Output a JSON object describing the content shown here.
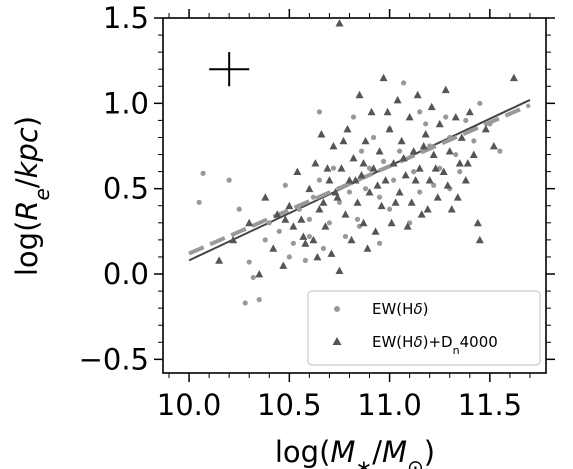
{
  "chart_data": {
    "type": "scatter",
    "xlabel": "log(M_*/M_⊙)",
    "ylabel": "log(R_e/kpc)",
    "xlim": [
      9.87,
      11.78
    ],
    "ylim": [
      -0.58,
      1.5
    ],
    "xticks": [
      "10.0",
      "10.5",
      "11.0",
      "11.5"
    ],
    "yticks": [
      "−0.5",
      "0.0",
      "0.5",
      "1.0",
      "1.5"
    ],
    "xtick_values": [
      10.0,
      10.5,
      11.0,
      11.5
    ],
    "ytick_values": [
      -0.5,
      0.0,
      0.5,
      1.0,
      1.5
    ],
    "grid": false,
    "legend_position": "bottom-right",
    "error_cross": {
      "x": 10.2,
      "y": 1.2,
      "xerr": 0.1,
      "yerr": 0.1
    },
    "series": [
      {
        "name": "EW(Hδ)",
        "marker": "circle",
        "color": "#999999",
        "points": [
          [
            10.05,
            0.42
          ],
          [
            10.07,
            0.59
          ],
          [
            10.2,
            0.55
          ],
          [
            10.25,
            0.38
          ],
          [
            10.3,
            0.07
          ],
          [
            10.32,
            -0.02
          ],
          [
            10.35,
            -0.15
          ],
          [
            10.28,
            -0.17
          ],
          [
            10.38,
            0.2
          ],
          [
            10.4,
            0.3
          ],
          [
            10.45,
            0.25
          ],
          [
            10.48,
            0.52
          ],
          [
            10.5,
            0.1
          ],
          [
            10.52,
            0.18
          ],
          [
            10.55,
            0.38
          ],
          [
            10.58,
            0.08
          ],
          [
            10.6,
            0.22
          ],
          [
            10.62,
            0.45
          ],
          [
            10.65,
            0.55
          ],
          [
            10.67,
            0.15
          ],
          [
            10.7,
            0.3
          ],
          [
            10.72,
            0.62
          ],
          [
            10.75,
            0.42
          ],
          [
            10.78,
            0.22
          ],
          [
            10.8,
            0.48
          ],
          [
            10.82,
            0.92
          ],
          [
            10.84,
            0.32
          ],
          [
            10.86,
            0.72
          ],
          [
            10.88,
            0.5
          ],
          [
            10.9,
            0.62
          ],
          [
            10.92,
            0.8
          ],
          [
            10.95,
            0.45
          ],
          [
            10.97,
            0.66
          ],
          [
            11.0,
            0.38
          ],
          [
            11.02,
            0.55
          ],
          [
            11.05,
            0.72
          ],
          [
            11.07,
            1.12
          ],
          [
            11.1,
            0.3
          ],
          [
            11.12,
            0.6
          ],
          [
            11.15,
            0.48
          ],
          [
            11.18,
            0.88
          ],
          [
            11.2,
            0.75
          ],
          [
            11.22,
            0.52
          ],
          [
            11.25,
            0.62
          ],
          [
            11.28,
            0.92
          ],
          [
            11.3,
            0.8
          ],
          [
            11.33,
            0.7
          ],
          [
            11.35,
            0.6
          ],
          [
            11.38,
            0.9
          ],
          [
            11.42,
            0.78
          ],
          [
            11.45,
            1.0
          ],
          [
            11.5,
            0.88
          ],
          [
            11.55,
            0.72
          ],
          [
            10.65,
            0.95
          ],
          [
            10.85,
            0.28
          ],
          [
            11.0,
            0.85
          ],
          [
            11.15,
            0.95
          ],
          [
            10.95,
            0.18
          ],
          [
            10.6,
            0.32
          ],
          [
            11.3,
            0.5
          ]
        ]
      },
      {
        "name": "EW(Hδ)+D_n4000",
        "marker": "triangle",
        "color": "#555555",
        "points": [
          [
            10.75,
            1.47
          ],
          [
            11.62,
            1.15
          ],
          [
            10.15,
            0.08
          ],
          [
            10.22,
            0.2
          ],
          [
            10.3,
            0.3
          ],
          [
            10.35,
            0.0
          ],
          [
            10.38,
            0.45
          ],
          [
            10.42,
            0.15
          ],
          [
            10.44,
            0.35
          ],
          [
            10.47,
            0.05
          ],
          [
            10.5,
            0.4
          ],
          [
            10.52,
            0.28
          ],
          [
            10.54,
            0.6
          ],
          [
            10.56,
            0.32
          ],
          [
            10.58,
            0.18
          ],
          [
            10.6,
            0.5
          ],
          [
            10.62,
            0.2
          ],
          [
            10.63,
            0.65
          ],
          [
            10.65,
            0.38
          ],
          [
            10.66,
            0.82
          ],
          [
            10.68,
            0.28
          ],
          [
            10.7,
            0.55
          ],
          [
            10.71,
            0.12
          ],
          [
            10.72,
            0.75
          ],
          [
            10.74,
            0.45
          ],
          [
            10.75,
            0.02
          ],
          [
            10.76,
            0.62
          ],
          [
            10.78,
            0.35
          ],
          [
            10.79,
            0.85
          ],
          [
            10.8,
            0.55
          ],
          [
            10.81,
            0.2
          ],
          [
            10.82,
            0.68
          ],
          [
            10.84,
            0.42
          ],
          [
            10.85,
            1.05
          ],
          [
            10.86,
            0.58
          ],
          [
            10.87,
            0.3
          ],
          [
            10.88,
            0.78
          ],
          [
            10.9,
            0.48
          ],
          [
            10.91,
            0.95
          ],
          [
            10.92,
            0.62
          ],
          [
            10.93,
            0.25
          ],
          [
            10.95,
            0.72
          ],
          [
            10.96,
            0.4
          ],
          [
            10.97,
            1.15
          ],
          [
            10.98,
            0.55
          ],
          [
            11.0,
            0.85
          ],
          [
            11.01,
            0.3
          ],
          [
            11.02,
            0.65
          ],
          [
            11.04,
            1.02
          ],
          [
            11.05,
            0.48
          ],
          [
            11.06,
            0.78
          ],
          [
            11.08,
            0.58
          ],
          [
            11.1,
            0.92
          ],
          [
            11.11,
            0.42
          ],
          [
            11.12,
            0.72
          ],
          [
            11.14,
            1.05
          ],
          [
            11.15,
            0.62
          ],
          [
            11.16,
            0.35
          ],
          [
            11.18,
            0.82
          ],
          [
            11.2,
            0.55
          ],
          [
            11.21,
            0.98
          ],
          [
            11.22,
            0.7
          ],
          [
            11.24,
            0.45
          ],
          [
            11.25,
            0.88
          ],
          [
            11.27,
            0.6
          ],
          [
            11.28,
            1.08
          ],
          [
            11.3,
            0.72
          ],
          [
            11.31,
            0.38
          ],
          [
            11.33,
            0.92
          ],
          [
            11.35,
            0.65
          ],
          [
            11.36,
            0.8
          ],
          [
            11.38,
            0.55
          ],
          [
            11.4,
            0.95
          ],
          [
            11.42,
            0.7
          ],
          [
            11.44,
            0.3
          ],
          [
            11.45,
            0.2
          ],
          [
            11.48,
            0.85
          ],
          [
            11.52,
            0.75
          ],
          [
            10.48,
            0.32
          ],
          [
            10.64,
            0.1
          ],
          [
            10.73,
            0.48
          ],
          [
            10.83,
            0.55
          ],
          [
            10.94,
            0.52
          ],
          [
            11.03,
            0.42
          ],
          [
            11.13,
            0.55
          ],
          [
            11.23,
            0.62
          ],
          [
            11.34,
            0.45
          ],
          [
            10.57,
            0.22
          ],
          [
            10.69,
            0.62
          ],
          [
            10.89,
            0.15
          ],
          [
            11.07,
            0.68
          ],
          [
            11.19,
            0.38
          ],
          [
            11.29,
            0.52
          ],
          [
            11.39,
            0.65
          ],
          [
            10.77,
            0.78
          ],
          [
            10.99,
            0.95
          ],
          [
            11.17,
            0.75
          ],
          [
            10.67,
            0.42
          ],
          [
            10.87,
            0.65
          ],
          [
            11.09,
            0.28
          ]
        ]
      }
    ],
    "fit_lines": [
      {
        "style": "solid",
        "color": "#444444",
        "x": [
          10.0,
          11.7
        ],
        "y": [
          0.08,
          1.02
        ]
      },
      {
        "style": "dashed",
        "color": "#999999",
        "x": [
          10.0,
          11.7
        ],
        "y": [
          0.12,
          0.99
        ]
      }
    ]
  }
}
